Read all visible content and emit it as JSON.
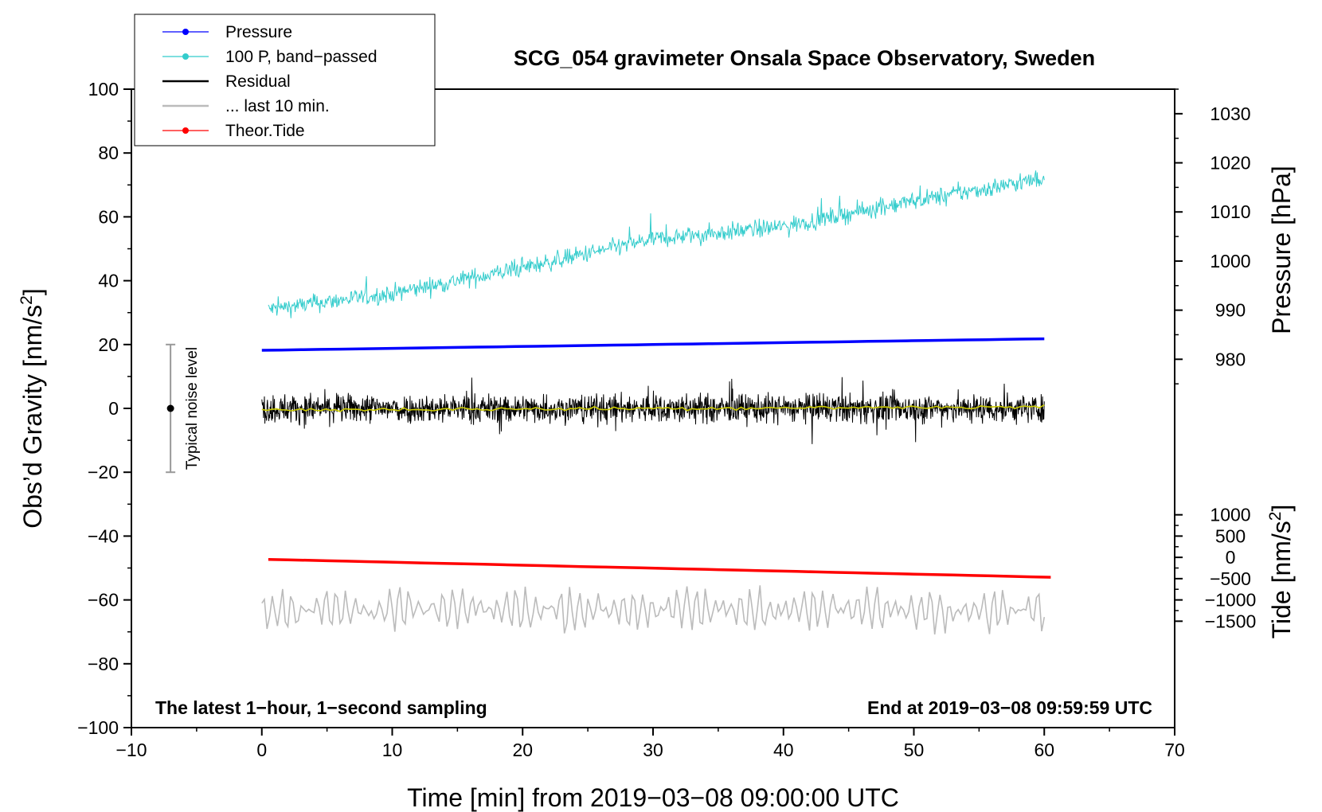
{
  "chart_data": {
    "type": "line",
    "title": "SCG_054 gravimeter Onsala Space Observatory, Sweden",
    "xlabel": "Time [min] from 2019−03−08 09:00:00 UTC",
    "ylabel_left": "Obs’d Gravity [nm/s",
    "ylabel_left_sup": "2",
    "ylabel_left_close": "]",
    "ylabel_right_pressure": "Pressure [hPa]",
    "ylabel_right_tide": "Tide [nm/s",
    "ylabel_right_tide_sup": "2",
    "ylabel_right_tide_close": "]",
    "xlim": [
      -10,
      70
    ],
    "ylim": [
      -100,
      100
    ],
    "x_ticks": [
      -10,
      0,
      10,
      20,
      30,
      40,
      50,
      60,
      70
    ],
    "x_tick_labels": [
      "−10",
      "0",
      "10",
      "20",
      "30",
      "40",
      "50",
      "60",
      "70"
    ],
    "y_ticks": [
      -100,
      -80,
      -60,
      -40,
      -20,
      0,
      20,
      40,
      60,
      80,
      100
    ],
    "y_tick_labels": [
      "−100",
      "−80",
      "−60",
      "−40",
      "−20",
      "0",
      "20",
      "40",
      "60",
      "80",
      "100"
    ],
    "pressure_ticks": [
      980,
      990,
      1000,
      1010,
      1020,
      1030
    ],
    "pressure_tick_labels": [
      "980",
      "990",
      "1000",
      "1010",
      "1020",
      "1030"
    ],
    "pressure_axis_map": {
      "value_at_y0": 970,
      "hpa_per_gravity_unit": 0.65
    },
    "tide_ticks": [
      1000,
      500,
      0,
      -500,
      -1000,
      -1500
    ],
    "tide_tick_labels": [
      "1000",
      "500",
      "0",
      "−500",
      "−1000",
      "−1500"
    ],
    "tide_axis_map": {
      "value_at_y0": 3500,
      "nm_per_gravity_unit": 75
    },
    "legend": [
      {
        "label": "Pressure",
        "color": "#0000ff",
        "marker": true
      },
      {
        "label": "100 P, band−passed",
        "color": "#33cccc",
        "marker": true
      },
      {
        "label": "Residual",
        "color": "#000000",
        "marker": false
      },
      {
        "label": "... last 10 min.",
        "color": "#bbbbbb",
        "marker": false
      },
      {
        "label": "Theor.Tide",
        "color": "#ff0000",
        "marker": true
      }
    ],
    "series": [
      {
        "name": "Pressure",
        "color": "#0000ff",
        "x": [
          0,
          60
        ],
        "y": [
          18.2,
          21.8
        ]
      },
      {
        "name": "100 P, band−passed",
        "color": "#33cccc",
        "x": [
          0.5,
          10,
          20,
          30,
          40,
          50,
          60
        ],
        "y": [
          31,
          36,
          44,
          53,
          57,
          65,
          72
        ],
        "noise_amplitude": 5
      },
      {
        "name": "Residual",
        "color": "#000000",
        "x": [
          0,
          60
        ],
        "y": [
          0,
          0
        ],
        "noise_amplitude": 8
      },
      {
        "name": "Residual smoothed",
        "color": "#cccc00",
        "x": [
          0,
          60
        ],
        "y": [
          -0.5,
          0.5
        ]
      },
      {
        "name": "... last 10 min.",
        "color": "#bbbbbb",
        "x": [
          0,
          60
        ],
        "y": [
          -63,
          -63
        ],
        "noise_amplitude": 8
      },
      {
        "name": "Theor.Tide",
        "color": "#ff0000",
        "x": [
          0.5,
          60.5
        ],
        "y": [
          -47.3,
          -52.9
        ]
      }
    ],
    "noise_bar": {
      "x": -7,
      "y_low": -20,
      "y_high": 20,
      "center": 0,
      "label": "Typical noise level"
    },
    "annotations": {
      "left": "The latest 1−hour, 1−second sampling",
      "right": "End at 2019−03−08 09:59:59 UTC"
    }
  }
}
